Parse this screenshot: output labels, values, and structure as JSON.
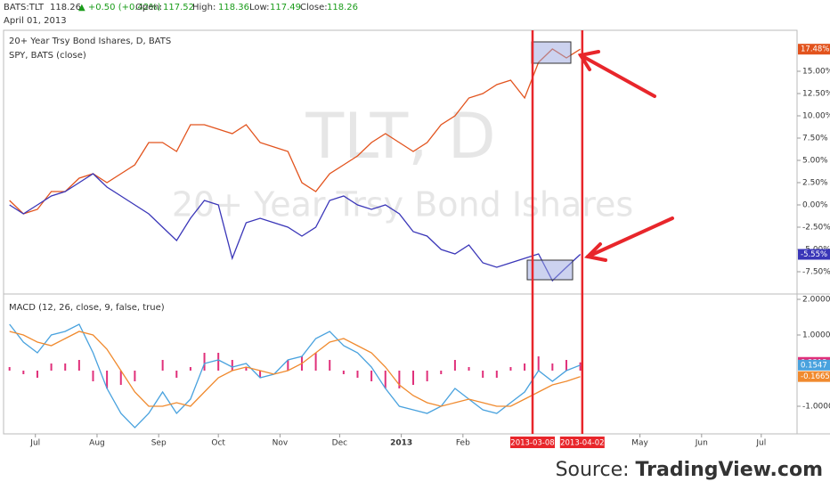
{
  "header": {
    "symbol": "BATS:TLT",
    "price": 118.26,
    "change": "▲ +0.50 (+0.42%)",
    "fields": [
      {
        "label": "Open:",
        "value": 117.52
      },
      {
        "label": "High:",
        "value": 118.36
      },
      {
        "label": "Low:",
        "value": 117.49
      },
      {
        "label": "Close:",
        "value": 118.26
      }
    ],
    "date": "April 01, 2013"
  },
  "watermark": {
    "symbol": "TLT, D",
    "name": "20+ Year Trsy Bond Ishares"
  },
  "source": {
    "label": "Source:",
    "site": "TradingView.com"
  },
  "chart_data": [
    {
      "type": "line",
      "title": "20+ Year Trsy Bond Ishares, D, BATS",
      "x": [
        "2012-06-18",
        "2012-06-25",
        "2012-07-02",
        "2012-07-09",
        "2012-07-16",
        "2012-07-23",
        "2012-07-30",
        "2012-08-06",
        "2012-08-13",
        "2012-08-20",
        "2012-08-27",
        "2012-09-03",
        "2012-09-10",
        "2012-09-17",
        "2012-09-24",
        "2012-10-01",
        "2012-10-08",
        "2012-10-15",
        "2012-10-22",
        "2012-10-29",
        "2012-11-05",
        "2012-11-12",
        "2012-11-19",
        "2012-11-26",
        "2012-12-03",
        "2012-12-10",
        "2012-12-17",
        "2012-12-24",
        "2012-12-31",
        "2013-01-07",
        "2013-01-14",
        "2013-01-21",
        "2013-01-28",
        "2013-02-04",
        "2013-02-11",
        "2013-02-18",
        "2013-02-25",
        "2013-03-04",
        "2013-03-11",
        "2013-03-18",
        "2013-03-25",
        "2013-04-01"
      ],
      "series": [
        {
          "name": "20+ Year Trsy Bond Ishares, D, BATS",
          "color": "#e2531d",
          "last_label": "17.48%",
          "values": [
            0.5,
            -1,
            -0.5,
            1.5,
            1.5,
            3,
            3.5,
            2.5,
            3.5,
            4.5,
            7,
            7,
            6,
            9,
            9,
            8.5,
            8,
            9,
            7,
            6.5,
            6,
            2.5,
            1.5,
            3.5,
            4.5,
            5.5,
            7,
            8,
            7,
            6,
            7,
            9,
            10,
            12,
            12.5,
            13.5,
            14,
            12,
            16,
            17.5,
            16.5,
            17.48
          ]
        },
        {
          "name": "SPY, BATS (close)",
          "color": "#3a36b8",
          "last_label": "-5.55%",
          "values": [
            0,
            -1,
            0,
            1,
            1.5,
            2.5,
            3.5,
            2,
            1,
            0,
            -1,
            -2.5,
            -4,
            -1.5,
            0.5,
            0,
            -6,
            -2,
            -1.5,
            -2,
            -2.5,
            -3.5,
            -2.5,
            0.5,
            1,
            0,
            -0.5,
            0,
            -1,
            -3,
            -3.5,
            -5,
            -5.5,
            -4.5,
            -6.5,
            -7,
            -6.5,
            -6,
            -5.5,
            -8.5,
            -7,
            -5.55
          ]
        }
      ],
      "xlim": [
        "2012-06-15",
        "2013-07-19"
      ],
      "ylim": [
        -10,
        19.6
      ],
      "yticks": [
        {
          "value": -7.5,
          "label": "-7.50%"
        },
        {
          "value": -5,
          "label": "-5.00%"
        },
        {
          "value": -2.5,
          "label": "-2.50%"
        },
        {
          "value": 0,
          "label": "0.00%"
        },
        {
          "value": 2.5,
          "label": "2.50%"
        },
        {
          "value": 5,
          "label": "5.00%"
        },
        {
          "value": 7.5,
          "label": "7.50%"
        },
        {
          "value": 10,
          "label": "10.00%"
        },
        {
          "value": 12.5,
          "label": "12.50%"
        },
        {
          "value": 15,
          "label": "15.00%"
        }
      ],
      "grid": false
    },
    {
      "type": "macd",
      "title": "MACD (12, 26, close, 9, false, true)",
      "x": [
        "2012-06-18",
        "2012-06-25",
        "2012-07-02",
        "2012-07-09",
        "2012-07-16",
        "2012-07-23",
        "2012-07-30",
        "2012-08-06",
        "2012-08-13",
        "2012-08-20",
        "2012-08-27",
        "2012-09-03",
        "2012-09-10",
        "2012-09-17",
        "2012-09-24",
        "2012-10-01",
        "2012-10-08",
        "2012-10-15",
        "2012-10-22",
        "2012-10-29",
        "2012-11-05",
        "2012-11-12",
        "2012-11-19",
        "2012-11-26",
        "2012-12-03",
        "2012-12-10",
        "2012-12-17",
        "2012-12-24",
        "2012-12-31",
        "2013-01-07",
        "2013-01-14",
        "2013-01-21",
        "2013-01-28",
        "2013-02-04",
        "2013-02-11",
        "2013-02-18",
        "2013-02-25",
        "2013-03-04",
        "2013-03-11",
        "2013-03-18",
        "2013-03-25",
        "2013-04-01"
      ],
      "series": [
        {
          "name": "Histogram",
          "color": "#e0307a",
          "last_label": "0.2312",
          "values": [
            0.1,
            -0.1,
            -0.2,
            0.2,
            0.2,
            0.3,
            -0.3,
            -0.5,
            -0.4,
            -0.3,
            0,
            0.3,
            -0.2,
            0.1,
            0.5,
            0.5,
            0.3,
            0.1,
            -0.2,
            0,
            0.3,
            0.4,
            0.5,
            0.3,
            -0.1,
            -0.2,
            -0.3,
            -0.5,
            -0.5,
            -0.4,
            -0.3,
            -0.1,
            0.3,
            0.1,
            -0.2,
            -0.2,
            0.1,
            0.2,
            0.4,
            0.2,
            0.3,
            0.2312
          ]
        },
        {
          "name": "MACD",
          "color": "#49a2de",
          "last_label": "0.1547",
          "values": [
            1.3,
            0.8,
            0.5,
            1,
            1.1,
            1.3,
            0.5,
            -0.5,
            -1.2,
            -1.6,
            -1.2,
            -0.6,
            -1.2,
            -0.8,
            0.2,
            0.3,
            0.1,
            0.2,
            -0.2,
            -0.1,
            0.3,
            0.4,
            0.9,
            1.1,
            0.7,
            0.5,
            0.1,
            -0.5,
            -1,
            -1.1,
            -1.2,
            -1,
            -0.5,
            -0.8,
            -1.1,
            -1.2,
            -0.9,
            -0.6,
            0,
            -0.3,
            0,
            0.1547
          ]
        },
        {
          "name": "Signal",
          "color": "#f08a2e",
          "last_label": "-0.1665",
          "values": [
            1.1,
            1,
            0.8,
            0.7,
            0.9,
            1.1,
            1,
            0.6,
            0,
            -0.6,
            -1,
            -1,
            -0.9,
            -1,
            -0.6,
            -0.2,
            0,
            0.1,
            0,
            -0.1,
            0,
            0.2,
            0.5,
            0.8,
            0.9,
            0.7,
            0.5,
            0.1,
            -0.4,
            -0.7,
            -0.9,
            -1,
            -0.9,
            -0.8,
            -0.9,
            -1,
            -1,
            -0.8,
            -0.6,
            -0.4,
            -0.3,
            -0.1665
          ]
        }
      ],
      "xlim": [
        "2012-06-15",
        "2013-07-19"
      ],
      "ylim": [
        -1.775,
        2.15
      ],
      "yticks": [
        {
          "value": -1,
          "label": "-1.0000"
        },
        {
          "value": 1,
          "label": "1.0000"
        },
        {
          "value": 2,
          "label": "2.0000"
        }
      ],
      "xticks": [
        {
          "value": "2012-07-01",
          "label": "Jul"
        },
        {
          "value": "2012-08-01",
          "label": "Aug"
        },
        {
          "value": "2012-09-01",
          "label": "Sep"
        },
        {
          "value": "2012-10-01",
          "label": "Oct"
        },
        {
          "value": "2012-11-01",
          "label": "Nov"
        },
        {
          "value": "2012-12-01",
          "label": "Dec"
        },
        {
          "value": "2013-01-01",
          "label": "2013"
        },
        {
          "value": "2013-02-01",
          "label": "Feb"
        },
        {
          "value": "2013-05-01",
          "label": "May"
        },
        {
          "value": "2013-06-01",
          "label": "Jun"
        },
        {
          "value": "2013-07-01",
          "label": "Jul"
        }
      ],
      "markers": [
        "2013-03-08",
        "2013-04-02"
      ],
      "grid": false
    }
  ]
}
